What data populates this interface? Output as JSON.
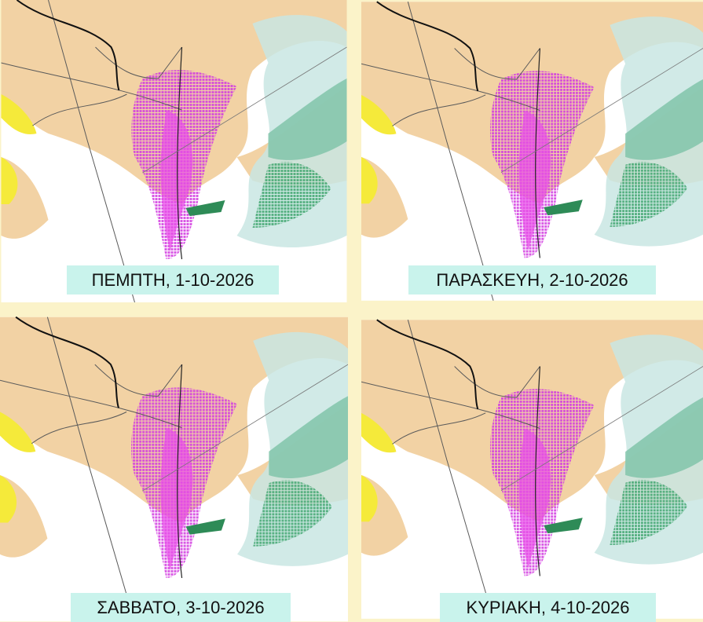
{
  "panels": [
    {
      "label": "ΠΕΜΠΤΗ, 1-10-2026"
    },
    {
      "label": "ΠΑΡΑΣΚΕΥΗ, 2-10-2026"
    },
    {
      "label": "ΣΑΒΒΑΤΟ, 3-10-2026"
    },
    {
      "label": "ΚΥΡΙΑΚΗ, 4-10-2026"
    }
  ]
}
